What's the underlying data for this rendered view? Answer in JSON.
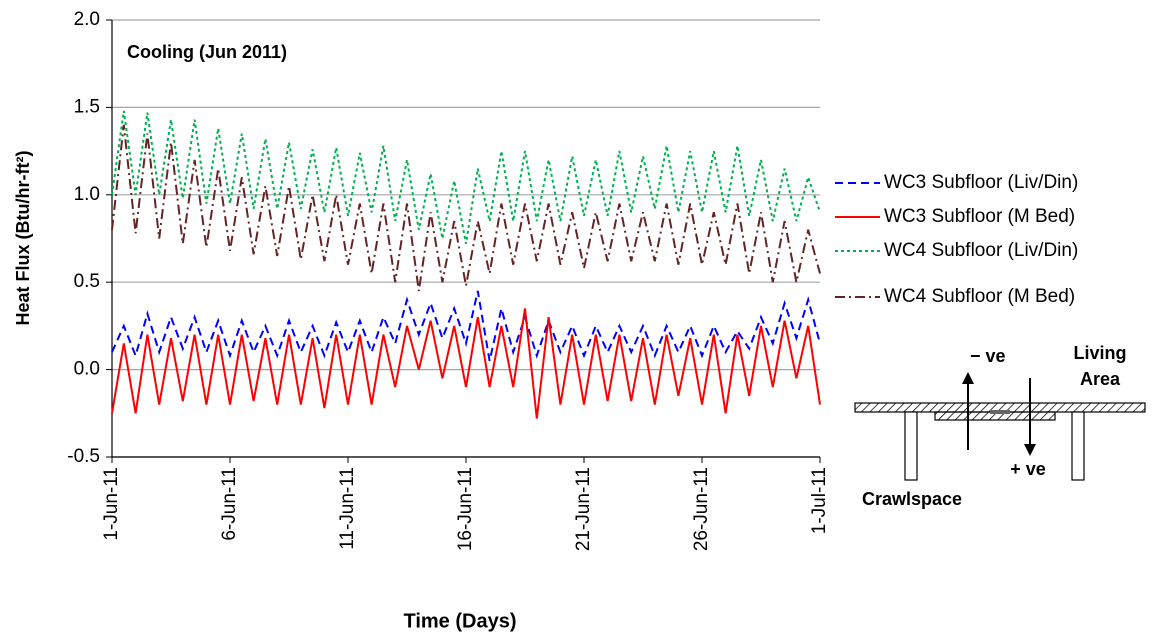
{
  "chart_data": {
    "type": "line",
    "title": "Cooling (Jun 2011)",
    "x_label": "Time (Days)",
    "y_label": "Heat Flux (Btu/hr-ft²)",
    "xlim": [
      0,
      30
    ],
    "xticks": [
      {
        "value": 0,
        "label": "1-Jun-11"
      },
      {
        "value": 5,
        "label": "6-Jun-11"
      },
      {
        "value": 10,
        "label": "11-Jun-11"
      },
      {
        "value": 15,
        "label": "16-Jun-11"
      },
      {
        "value": 20,
        "label": "21-Jun-11"
      },
      {
        "value": 25,
        "label": "26-Jun-11"
      },
      {
        "value": 30,
        "label": "1-Jul-11"
      }
    ],
    "ylim": [
      -0.5,
      2.0
    ],
    "yticks": [
      -0.5,
      {
        "value": 0,
        "label": "0.0"
      },
      0.5,
      {
        "value": 1,
        "label": "1.0"
      },
      1.5,
      {
        "value": 2,
        "label": "2.0"
      }
    ],
    "grid": true,
    "legend": "right",
    "x": [
      0,
      0.5,
      1,
      1.5,
      2,
      2.5,
      3,
      3.5,
      4,
      4.5,
      5,
      5.5,
      6,
      6.5,
      7,
      7.5,
      8,
      8.5,
      9,
      9.5,
      10,
      10.5,
      11,
      11.5,
      12,
      12.5,
      13,
      13.5,
      14,
      14.5,
      15,
      15.5,
      16,
      16.5,
      17,
      17.5,
      18,
      18.5,
      19,
      19.5,
      20,
      20.5,
      21,
      21.5,
      22,
      22.5,
      23,
      23.5,
      24,
      24.5,
      25,
      25.5,
      26,
      26.5,
      27,
      27.5,
      28,
      28.5,
      29,
      29.5,
      30
    ],
    "series": [
      {
        "name": "WC3 Subfloor (Liv/Din)",
        "color": "#0000ff",
        "style": "dashed",
        "values": [
          0.1,
          0.25,
          0.08,
          0.32,
          0.1,
          0.3,
          0.12,
          0.3,
          0.1,
          0.28,
          0.08,
          0.28,
          0.1,
          0.25,
          0.08,
          0.28,
          0.1,
          0.25,
          0.08,
          0.27,
          0.1,
          0.28,
          0.1,
          0.3,
          0.15,
          0.4,
          0.2,
          0.38,
          0.18,
          0.35,
          0.15,
          0.45,
          0.05,
          0.35,
          0.1,
          0.3,
          0.08,
          0.28,
          0.1,
          0.25,
          0.08,
          0.25,
          0.1,
          0.25,
          0.1,
          0.25,
          0.08,
          0.25,
          0.1,
          0.25,
          0.08,
          0.25,
          0.1,
          0.22,
          0.12,
          0.3,
          0.15,
          0.38,
          0.18,
          0.4,
          0.15
        ]
      },
      {
        "name": "WC3 Subfloor (M Bed)",
        "color": "#ff0000",
        "style": "solid",
        "values": [
          -0.25,
          0.15,
          -0.25,
          0.2,
          -0.2,
          0.18,
          -0.18,
          0.2,
          -0.2,
          0.2,
          -0.2,
          0.2,
          -0.18,
          0.18,
          -0.2,
          0.2,
          -0.2,
          0.18,
          -0.22,
          0.2,
          -0.2,
          0.2,
          -0.2,
          0.2,
          -0.1,
          0.25,
          0,
          0.28,
          -0.05,
          0.25,
          -0.1,
          0.3,
          -0.1,
          0.25,
          -0.1,
          0.35,
          -0.28,
          0.3,
          -0.2,
          0.2,
          -0.2,
          0.2,
          -0.18,
          0.2,
          -0.18,
          0.18,
          -0.2,
          0.2,
          -0.15,
          0.18,
          -0.2,
          0.2,
          -0.25,
          0.2,
          -0.15,
          0.25,
          -0.1,
          0.28,
          -0.05,
          0.25,
          -0.2
        ]
      },
      {
        "name": "WC4 Subfloor (Liv/Din)",
        "color": "#00b050",
        "style": "dotted",
        "values": [
          1.0,
          1.48,
          1.0,
          1.47,
          1.0,
          1.43,
          0.98,
          1.43,
          0.95,
          1.38,
          0.95,
          1.35,
          0.92,
          1.32,
          0.92,
          1.3,
          0.92,
          1.26,
          0.9,
          1.27,
          0.88,
          1.24,
          0.9,
          1.28,
          0.85,
          1.2,
          0.8,
          1.12,
          0.75,
          1.08,
          0.72,
          1.15,
          0.85,
          1.25,
          0.85,
          1.25,
          0.85,
          1.2,
          0.85,
          1.22,
          0.88,
          1.2,
          0.88,
          1.25,
          0.9,
          1.22,
          0.92,
          1.28,
          0.9,
          1.25,
          0.9,
          1.25,
          0.9,
          1.28,
          0.88,
          1.2,
          0.85,
          1.15,
          0.85,
          1.1,
          0.9
        ]
      },
      {
        "name": "WC4 Subfloor (M Bed)",
        "color": "#632423",
        "style": "dashdot",
        "values": [
          0.8,
          1.4,
          0.78,
          1.35,
          0.75,
          1.3,
          0.72,
          1.2,
          0.7,
          1.15,
          0.68,
          1.1,
          0.66,
          1.05,
          0.65,
          1.05,
          0.63,
          1.0,
          0.62,
          1.0,
          0.6,
          0.95,
          0.55,
          0.95,
          0.5,
          0.95,
          0.45,
          0.9,
          0.5,
          0.85,
          0.48,
          0.85,
          0.55,
          0.95,
          0.6,
          0.95,
          0.62,
          0.95,
          0.6,
          0.9,
          0.58,
          0.9,
          0.62,
          0.95,
          0.62,
          0.9,
          0.62,
          0.95,
          0.6,
          0.95,
          0.6,
          0.9,
          0.6,
          0.95,
          0.55,
          0.9,
          0.5,
          0.85,
          0.5,
          0.8,
          0.55
        ]
      }
    ],
    "annotations": [
      "− ve",
      "Living",
      "Area",
      "+ ve",
      "Crawlspace"
    ]
  }
}
